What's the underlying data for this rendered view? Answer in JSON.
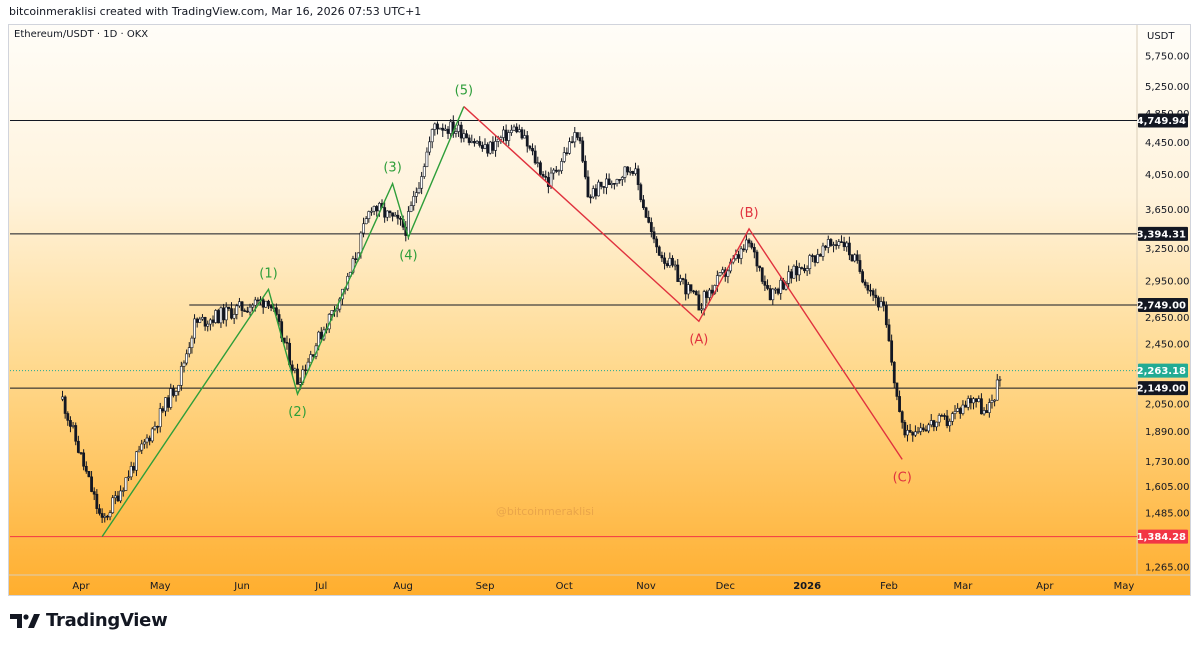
{
  "header": {
    "credit": "bitcoinmeraklisi created with TradingView.com, Mar 16, 2026 07:53 UTC+1",
    "symbol": "Ethereum/USDT · 1D · OKX"
  },
  "brand": {
    "name": "TradingView"
  },
  "watermark": "@bitcoinmeraklisi",
  "chart_data": {
    "type": "candlestick",
    "currency_label": "USDT",
    "price_scale": "log",
    "y_ticks": [
      5750,
      5250,
      4850,
      4450,
      4050,
      3650,
      3250,
      2950,
      2650,
      2450,
      2050,
      1890,
      1730,
      1605,
      1485,
      1265
    ],
    "x_ticks": [
      {
        "label": "Apr",
        "date": "2025-04-01"
      },
      {
        "label": "May",
        "date": "2025-05-01"
      },
      {
        "label": "Jun",
        "date": "2025-06-01"
      },
      {
        "label": "Jul",
        "date": "2025-07-01"
      },
      {
        "label": "Aug",
        "date": "2025-08-01"
      },
      {
        "label": "Sep",
        "date": "2025-09-01"
      },
      {
        "label": "Oct",
        "date": "2025-10-01"
      },
      {
        "label": "Nov",
        "date": "2025-11-01"
      },
      {
        "label": "Dec",
        "date": "2025-12-01"
      },
      {
        "label": "2026",
        "date": "2026-01-01",
        "bold": true
      },
      {
        "label": "Feb",
        "date": "2026-02-01"
      },
      {
        "label": "Mar",
        "date": "2026-03-01"
      },
      {
        "label": "Apr",
        "date": "2026-04-01"
      },
      {
        "label": "May",
        "date": "2026-05-01"
      }
    ],
    "horizontal_levels": [
      {
        "value": 4749.94,
        "label": "4,749.94",
        "line_color": "#131722",
        "tag_bg": "#131722",
        "tag_color": "#ffffff"
      },
      {
        "value": 3394.31,
        "label": "3,394.31",
        "line_color": "#131722",
        "tag_bg": "#131722",
        "tag_color": "#ffffff"
      },
      {
        "value": 2749.0,
        "label": "2,749.00",
        "line_color": "#131722",
        "tag_bg": "#131722",
        "tag_color": "#ffffff",
        "start_date": "2025-05-12"
      },
      {
        "value": 2149.0,
        "label": "2,149.00",
        "line_color": "#131722",
        "tag_bg": "#131722",
        "tag_color": "#ffffff"
      },
      {
        "value": 1384.28,
        "label": "1,384.28",
        "line_color": "#f23645",
        "tag_bg": "#f23645",
        "tag_color": "#ffffff"
      }
    ],
    "last_price": {
      "value": 2263.18,
      "label": "2,263.18",
      "tag_bg": "#22ab94",
      "tag_color": "#ffffff"
    },
    "impulse_wave": {
      "color": "#2e9e3a",
      "points": [
        {
          "label": "",
          "date": "2025-04-09",
          "value": 1384
        },
        {
          "label": "(1)",
          "date": "2025-06-11",
          "value": 2880
        },
        {
          "label": "(2)",
          "date": "2025-06-22",
          "value": 2112
        },
        {
          "label": "(3)",
          "date": "2025-07-28",
          "value": 3940
        },
        {
          "label": "(4)",
          "date": "2025-08-03",
          "value": 3360
        },
        {
          "label": "(5)",
          "date": "2025-08-24",
          "value": 4950
        }
      ]
    },
    "corrective_wave": {
      "color": "#e0323e",
      "points": [
        {
          "label": "",
          "date": "2025-08-24",
          "value": 4950
        },
        {
          "label": "(A)",
          "date": "2025-11-21",
          "value": 2620
        },
        {
          "label": "(B)",
          "date": "2025-12-10",
          "value": 3445
        },
        {
          "label": "(C)",
          "date": "2026-02-06",
          "value": 1740
        }
      ]
    },
    "anchors": [
      {
        "date": "2025-03-25",
        "value": 2080
      },
      {
        "date": "2025-04-09",
        "value": 1440
      },
      {
        "date": "2025-05-08",
        "value": 2200
      },
      {
        "date": "2025-05-14",
        "value": 2600
      },
      {
        "date": "2025-06-11",
        "value": 2800
      },
      {
        "date": "2025-06-22",
        "value": 2200
      },
      {
        "date": "2025-07-11",
        "value": 2950
      },
      {
        "date": "2025-07-20",
        "value": 3700
      },
      {
        "date": "2025-08-02",
        "value": 3450
      },
      {
        "date": "2025-08-13",
        "value": 4700
      },
      {
        "date": "2025-08-24",
        "value": 4600
      },
      {
        "date": "2025-09-01",
        "value": 4350
      },
      {
        "date": "2025-09-13",
        "value": 4650
      },
      {
        "date": "2025-09-25",
        "value": 3950
      },
      {
        "date": "2025-10-06",
        "value": 4600
      },
      {
        "date": "2025-10-10",
        "value": 3800
      },
      {
        "date": "2025-10-27",
        "value": 4150
      },
      {
        "date": "2025-11-04",
        "value": 3300
      },
      {
        "date": "2025-11-21",
        "value": 2750
      },
      {
        "date": "2025-12-10",
        "value": 3300
      },
      {
        "date": "2025-12-18",
        "value": 2850
      },
      {
        "date": "2026-01-05",
        "value": 3200
      },
      {
        "date": "2026-01-14",
        "value": 3350
      },
      {
        "date": "2026-01-30",
        "value": 2700
      },
      {
        "date": "2026-02-06",
        "value": 1900
      },
      {
        "date": "2026-02-23",
        "value": 1950
      },
      {
        "date": "2026-03-05",
        "value": 2100
      },
      {
        "date": "2026-03-10",
        "value": 1980
      },
      {
        "date": "2026-03-16",
        "value": 2263
      }
    ]
  },
  "colors": {
    "up_candle": "#ffffff",
    "down_candle": "#131722",
    "frame_border": "#d1d4dc"
  }
}
